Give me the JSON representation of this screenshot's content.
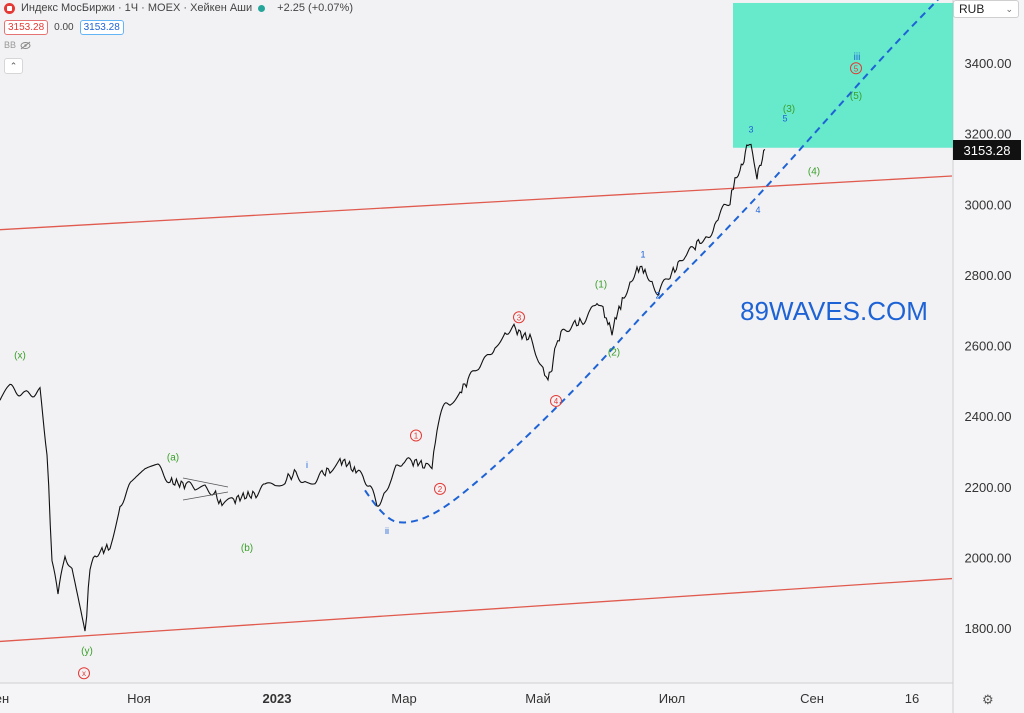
{
  "header": {
    "symbol_title": "Индекс МосБиржи · 1Ч · MOEX · Хейкен Аши",
    "change": "+2.25 (+0.07%)",
    "bid": "3153.28",
    "spread": "0.00",
    "ask": "3153.28",
    "indicator": "BB",
    "currency": "RUB",
    "chevron": "⌃"
  },
  "colors": {
    "candles": "#111111",
    "channel": "#e05a4e",
    "projection": "#1e63d6",
    "target_zone": "#4fe8c4",
    "price_tag_bg": "#111111",
    "label_green": "#3aa02a",
    "label_red": "#e53935",
    "label_blue": "#1e63d6"
  },
  "chart_data": {
    "type": "line",
    "title": "",
    "xlabel": "",
    "ylabel": "",
    "x_tick_labels": [
      "ен",
      "Ноя",
      "2023",
      "Мар",
      "Май",
      "Июл",
      "Сен",
      "16"
    ],
    "y_tick_labels": [
      "3400.00",
      "3200.00",
      "3000.00",
      "2800.00",
      "2600.00",
      "2400.00",
      "2200.00",
      "2000.00",
      "1800.00"
    ],
    "ylim": [
      1640,
      3570
    ],
    "last_price": "3153.28",
    "watermark": "89WAVES.COM",
    "price_series": {
      "name": "Индекс МосБиржи",
      "t": [
        0,
        10,
        25,
        40,
        47,
        52,
        58,
        65,
        72,
        85,
        90,
        95,
        102,
        110,
        120,
        132,
        145,
        158,
        170,
        178,
        186,
        195,
        205,
        214,
        222,
        232,
        240,
        248,
        256,
        265,
        275,
        285,
        296,
        305,
        315,
        322,
        330,
        340,
        348,
        356,
        363,
        370,
        377,
        384,
        390,
        396,
        403,
        410,
        418,
        426,
        432,
        437,
        443,
        450,
        460,
        468,
        477,
        486,
        495,
        505,
        514,
        522,
        530,
        537,
        543,
        548,
        552,
        556,
        561,
        568,
        575,
        583,
        590,
        597,
        603,
        608,
        612,
        615,
        619,
        624,
        630,
        637,
        645,
        652,
        658,
        664,
        670,
        678,
        685,
        692,
        700,
        706,
        713,
        718,
        724,
        730,
        735,
        740,
        744,
        748,
        751,
        754,
        757,
        761,
        765
      ],
      "values": [
        2445,
        2480,
        2460,
        2470,
        2300,
        1990,
        1890,
        2010,
        1960,
        1780,
        1970,
        2010,
        2020,
        2030,
        2150,
        2210,
        2240,
        2255,
        2215,
        2210,
        2205,
        2200,
        2195,
        2185,
        2145,
        2160,
        2170,
        2175,
        2180,
        2200,
        2200,
        2220,
        2240,
        2210,
        2220,
        2235,
        2250,
        2275,
        2265,
        2240,
        2230,
        2200,
        2150,
        2175,
        2220,
        2250,
        2275,
        2270,
        2270,
        2255,
        2260,
        2360,
        2420,
        2440,
        2470,
        2500,
        2540,
        2560,
        2600,
        2640,
        2650,
        2630,
        2620,
        2575,
        2530,
        2500,
        2540,
        2600,
        2630,
        2650,
        2660,
        2670,
        2690,
        2730,
        2700,
        2660,
        2640,
        2680,
        2700,
        2740,
        2780,
        2820,
        2815,
        2780,
        2750,
        2775,
        2800,
        2825,
        2860,
        2870,
        2900,
        2900,
        2930,
        2960,
        2990,
        3010,
        3070,
        3090,
        3130,
        3170,
        3160,
        3110,
        3075,
        3120,
        3155
      ]
    },
    "channel": {
      "name": "",
      "upper_line": {
        "t": [
          0,
          952
        ],
        "values": [
          2928,
          3080
        ]
      },
      "lower_line": {
        "t": [
          0,
          952
        ],
        "values": [
          1762,
          1940
        ]
      }
    },
    "projection": {
      "name": "",
      "t": [
        365,
        385,
        410,
        440,
        480,
        530,
        590,
        650,
        710,
        770,
        830,
        890,
        945
      ],
      "values": [
        2190,
        2105,
        2095,
        2130,
        2220,
        2350,
        2520,
        2710,
        2880,
        3060,
        3250,
        3440,
        3600
      ]
    },
    "target_zone": {
      "t_start": 733,
      "t_end": 953,
      "y_low": 3160,
      "y_high": 3570
    },
    "wave_labels": [
      {
        "text": "(x)",
        "t": 20,
        "y": 2574,
        "color": "green"
      },
      {
        "text": "(y)",
        "t": 87,
        "y": 1738,
        "color": "green"
      },
      {
        "text": "x",
        "t": 84,
        "y": 1672,
        "color": "red",
        "circled": true
      },
      {
        "text": "(a)",
        "t": 173,
        "y": 2285,
        "color": "green"
      },
      {
        "text": "(b)",
        "t": 247,
        "y": 2030,
        "color": "green"
      },
      {
        "text": "i",
        "t": 307,
        "y": 2265,
        "color": "blue"
      },
      {
        "text": "ii",
        "t": 387,
        "y": 2078,
        "color": "blue"
      },
      {
        "text": "1",
        "t": 416,
        "y": 2345,
        "color": "red",
        "circled": true
      },
      {
        "text": "2",
        "t": 440,
        "y": 2194,
        "color": "red",
        "circled": true
      },
      {
        "text": "3",
        "t": 519,
        "y": 2680,
        "color": "red",
        "circled": true
      },
      {
        "text": "4",
        "t": 556,
        "y": 2443,
        "color": "red",
        "circled": true
      },
      {
        "text": "5",
        "t": 856,
        "y": 3385,
        "color": "red",
        "circled": true
      },
      {
        "text": "(1)",
        "t": 601,
        "y": 2775,
        "color": "green"
      },
      {
        "text": "(2)",
        "t": 614,
        "y": 2583,
        "color": "green"
      },
      {
        "text": "(3)",
        "t": 789,
        "y": 3272,
        "color": "green"
      },
      {
        "text": "(4)",
        "t": 814,
        "y": 3095,
        "color": "green"
      },
      {
        "text": "(5)",
        "t": 856,
        "y": 3310,
        "color": "green"
      },
      {
        "text": "1",
        "t": 643,
        "y": 2860,
        "color": "blue"
      },
      {
        "text": "2",
        "t": 658,
        "y": 2745,
        "color": "blue"
      },
      {
        "text": "3",
        "t": 751,
        "y": 3215,
        "color": "blue"
      },
      {
        "text": "4",
        "t": 758,
        "y": 2987,
        "color": "blue"
      },
      {
        "text": "5",
        "t": 785,
        "y": 3245,
        "color": "blue"
      },
      {
        "text": "iii",
        "t": 857,
        "y": 3420,
        "color": "blue"
      }
    ]
  }
}
